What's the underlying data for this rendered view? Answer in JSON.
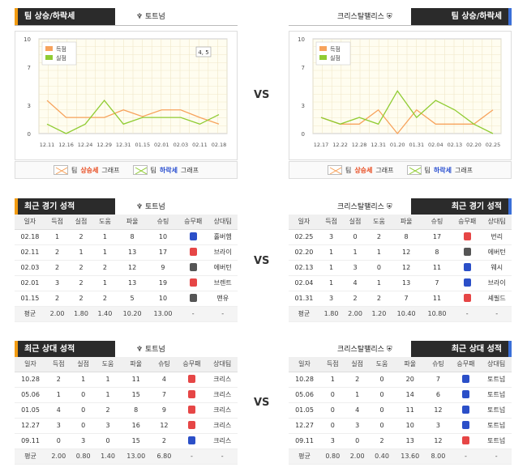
{
  "vs_label": "VS",
  "colors": {
    "scored": "#f7a35c",
    "conceded": "#90cc33",
    "win": "#e64646",
    "draw": "#555555",
    "loss": "#2b4fc8"
  },
  "sections": {
    "trend_title": "팀 상승/하락세",
    "recent_title": "최근 경기 성적",
    "h2h_title": "최근 상대 성적"
  },
  "teams": {
    "left": "토트넘",
    "right": "크리스탈팰리스"
  },
  "legend_labels": {
    "scored": "득점",
    "conceded": "실점"
  },
  "graph_legend": {
    "up_prefix": "팀 ",
    "up_hl": "상승세",
    "up_suffix": " 그래프",
    "down_prefix": "팀 ",
    "down_hl": "하락세",
    "down_suffix": " 그래프"
  },
  "left_tooltip": "4, 5",
  "chart_data": [
    {
      "type": "line",
      "ylim": [
        0,
        10
      ],
      "yticks": [
        "0",
        "3",
        "7",
        "10"
      ],
      "categories": [
        "12.11",
        "12.16",
        "12.24",
        "12.29",
        "12.31",
        "01.15",
        "02.01",
        "02.03",
        "02.11",
        "02.18"
      ],
      "series": [
        {
          "name": "득점",
          "values": [
            3.5,
            1.7,
            1.7,
            1.7,
            2.5,
            1.8,
            2.5,
            2.5,
            1.7,
            1.0
          ]
        },
        {
          "name": "실점",
          "values": [
            1.0,
            0.0,
            1.0,
            3.5,
            1.0,
            1.7,
            1.7,
            1.7,
            1.0,
            2.0
          ]
        }
      ]
    },
    {
      "type": "line",
      "ylim": [
        0,
        10
      ],
      "yticks": [
        "0",
        "3",
        "7",
        "10"
      ],
      "categories": [
        "12.17",
        "12.22",
        "12.28",
        "12.31",
        "01.20",
        "01.31",
        "02.04",
        "02.13",
        "02.20",
        "02.25"
      ],
      "series": [
        {
          "name": "득점",
          "values": [
            1.7,
            1.0,
            1.0,
            2.5,
            0.0,
            2.5,
            1.0,
            1.0,
            1.0,
            2.5
          ]
        },
        {
          "name": "실점",
          "values": [
            1.7,
            1.0,
            1.7,
            1.0,
            4.5,
            1.7,
            3.5,
            2.5,
            1.0,
            0.0
          ]
        }
      ]
    }
  ],
  "table_headers": [
    "일자",
    "득점",
    "실점",
    "도움",
    "파울",
    "슈팅",
    "승무패",
    "상대팀"
  ],
  "recent_left": {
    "rows": [
      [
        "02.18",
        "1",
        "2",
        "1",
        "8",
        "10",
        "L",
        "홀버햄"
      ],
      [
        "02.11",
        "2",
        "1",
        "1",
        "13",
        "17",
        "W",
        "브라이"
      ],
      [
        "02.03",
        "2",
        "2",
        "2",
        "12",
        "9",
        "D",
        "에버턴"
      ],
      [
        "02.01",
        "3",
        "2",
        "1",
        "13",
        "19",
        "W",
        "브렌트"
      ],
      [
        "01.15",
        "2",
        "2",
        "2",
        "5",
        "10",
        "D",
        "맨유"
      ]
    ],
    "avg": [
      "평균",
      "2.00",
      "1.80",
      "1.40",
      "10.20",
      "13.00",
      "-",
      "-"
    ]
  },
  "recent_right": {
    "rows": [
      [
        "02.25",
        "3",
        "0",
        "2",
        "8",
        "17",
        "W",
        "번리"
      ],
      [
        "02.20",
        "1",
        "1",
        "1",
        "12",
        "8",
        "D",
        "에버턴"
      ],
      [
        "02.13",
        "1",
        "3",
        "0",
        "12",
        "11",
        "L",
        "웨시"
      ],
      [
        "02.04",
        "1",
        "4",
        "1",
        "13",
        "7",
        "L",
        "브라이"
      ],
      [
        "01.31",
        "3",
        "2",
        "2",
        "7",
        "11",
        "W",
        "셰필드"
      ]
    ],
    "avg": [
      "평균",
      "1.80",
      "2.00",
      "1.20",
      "10.40",
      "10.80",
      "-",
      "-"
    ]
  },
  "h2h_left": {
    "rows": [
      [
        "10.28",
        "2",
        "1",
        "1",
        "11",
        "4",
        "W",
        "크리스"
      ],
      [
        "05.06",
        "1",
        "0",
        "1",
        "15",
        "7",
        "W",
        "크리스"
      ],
      [
        "01.05",
        "4",
        "0",
        "2",
        "8",
        "9",
        "W",
        "크리스"
      ],
      [
        "12.27",
        "3",
        "0",
        "3",
        "16",
        "12",
        "W",
        "크리스"
      ],
      [
        "09.11",
        "0",
        "3",
        "0",
        "15",
        "2",
        "L",
        "크리스"
      ]
    ],
    "avg": [
      "평균",
      "2.00",
      "0.80",
      "1.40",
      "13.00",
      "6.80",
      "-",
      "-"
    ]
  },
  "h2h_right": {
    "rows": [
      [
        "10.28",
        "1",
        "2",
        "0",
        "20",
        "7",
        "L",
        "토트넘"
      ],
      [
        "05.06",
        "0",
        "1",
        "0",
        "14",
        "6",
        "L",
        "토트넘"
      ],
      [
        "01.05",
        "0",
        "4",
        "0",
        "11",
        "12",
        "L",
        "토트넘"
      ],
      [
        "12.27",
        "0",
        "3",
        "0",
        "10",
        "3",
        "L",
        "토트넘"
      ],
      [
        "09.11",
        "3",
        "0",
        "2",
        "13",
        "12",
        "W",
        "토트넘"
      ]
    ],
    "avg": [
      "평균",
      "0.80",
      "2.00",
      "0.40",
      "13.60",
      "8.00",
      "-",
      "-"
    ]
  }
}
